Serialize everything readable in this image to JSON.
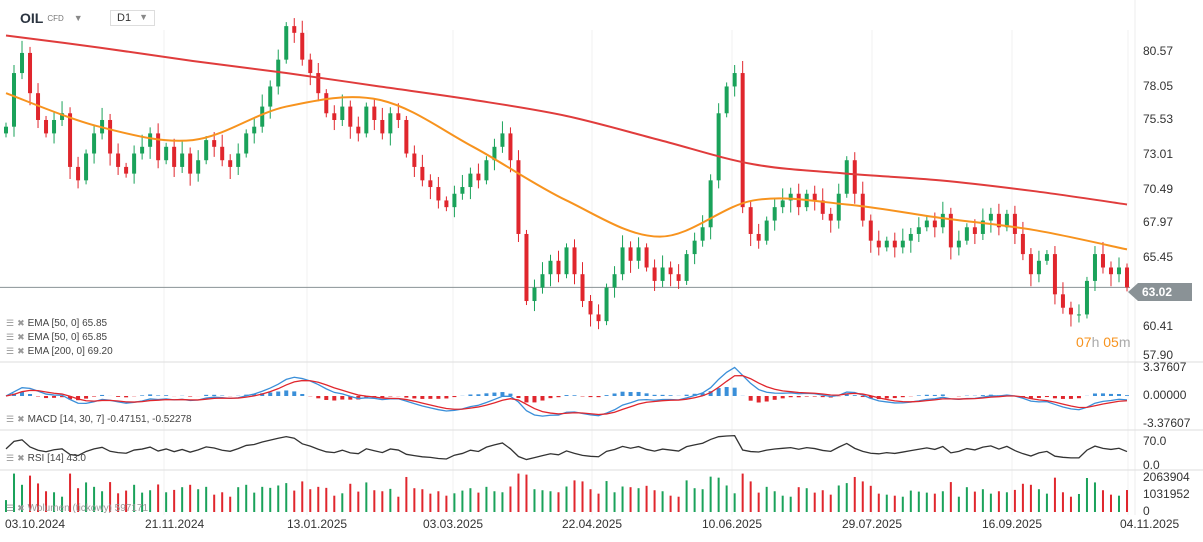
{
  "header": {
    "symbol": "OIL",
    "type": "CFD",
    "timeframe": "D1"
  },
  "current_price": "63.02",
  "countdown": {
    "h": "07",
    "hu": "h",
    "m": "05",
    "mu": "m"
  },
  "legends": {
    "ema50a": "EMA [50, 0] 65.85",
    "ema50b": "EMA [50, 0] 65.85",
    "ema200": "EMA [200, 0] 69.20",
    "macd": "MACD [14, 30, 7] -0.47151, -0.52278",
    "rsi": "RSI [14] 43.0",
    "volume": "Wolumen (tickowy) 597171"
  },
  "colors": {
    "up": "#1aa25a",
    "down": "#e0262d",
    "ema50": "#f7931e",
    "ema200": "#e03c3c",
    "macd": "#3a8fd9",
    "signal": "#e0262d"
  },
  "chart_data": [
    {
      "type": "candlestick",
      "ylim": [
        57.9,
        80.57
      ],
      "yticks": [
        "80.57",
        "78.05",
        "75.53",
        "73.01",
        "70.49",
        "67.97",
        "65.45",
        "60.41",
        "57.90"
      ],
      "xticks": [
        "03.10.2024",
        "21.11.2024",
        "13.01.2025",
        "03.03.2025",
        "22.04.2025",
        "10.06.2025",
        "29.07.2025",
        "16.09.2025",
        "04.11.2025"
      ],
      "close": [
        75.0,
        79,
        80.5,
        77.5,
        75.5,
        74.5,
        75.5,
        76,
        72,
        71,
        73,
        74.5,
        75.5,
        73,
        72,
        71.5,
        73,
        73.5,
        74.5,
        72.5,
        73.5,
        72,
        73,
        71.5,
        72.5,
        74,
        73.5,
        72.5,
        72,
        73,
        74.5,
        75,
        76.5,
        78,
        80,
        82.5,
        82,
        80,
        79,
        77.5,
        76,
        75.5,
        76.5,
        75,
        74.5,
        76.5,
        75.5,
        74.5,
        76,
        75.5,
        73,
        72,
        71,
        70.5,
        69.5,
        69,
        70,
        70.5,
        71.5,
        71,
        72.5,
        73.5,
        74.5,
        72.5,
        67,
        62,
        63,
        64,
        65,
        64,
        66,
        64,
        62,
        61,
        60.5,
        63,
        64,
        66,
        65,
        66,
        64.5,
        63.5,
        64.5,
        64,
        63.5,
        65.5,
        66.5,
        67.5,
        71,
        76,
        78,
        79,
        69,
        67,
        66.5,
        68,
        69,
        69.5,
        70,
        69,
        70,
        69.5,
        68.5,
        68,
        70,
        72.5,
        70,
        68,
        66.5,
        66,
        66.5,
        66,
        66.5,
        67,
        67.5,
        68,
        67.5,
        68.5,
        66,
        66.5,
        67.5,
        67,
        68,
        68.5,
        67.5,
        68.5,
        67,
        65.5,
        64,
        65,
        65.5,
        62.5,
        61.5,
        61,
        61,
        63.5,
        65.5,
        64.5,
        64,
        64.5,
        63.02
      ],
      "ema50": [
        77.5,
        75,
        74,
        76.5,
        77,
        73.5,
        69.5,
        66.8,
        69.5,
        69.2,
        68.2,
        67.3,
        65.85
      ],
      "ema200": [
        81.8,
        80.9,
        79.9,
        79.0,
        78.0,
        77.0,
        75.8,
        74.0,
        72.2,
        71.5,
        71.0,
        70.2,
        69.2
      ]
    },
    {
      "type": "macd",
      "yticks": [
        "3.37607",
        "0.00000",
        "-3.37607"
      ],
      "ylim": [
        -3.37607,
        3.37607
      ]
    },
    {
      "type": "rsi",
      "yticks": [
        "70.0",
        "0.0"
      ]
    },
    {
      "type": "volume",
      "yticks": [
        "2063904",
        "1031952",
        "0"
      ]
    }
  ]
}
